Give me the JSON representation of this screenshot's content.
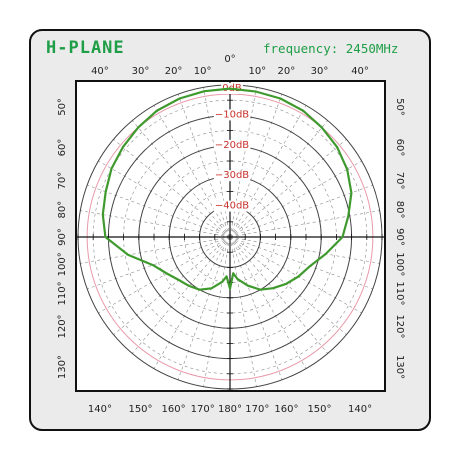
{
  "title": "H-PLANE",
  "frequency_label": "frequency: 2450MHz",
  "colors": {
    "accent": "#1e9e46",
    "pattern_line": "#3f9a2e",
    "radial_label": "#c8322d",
    "reference_circle": "#e99aaa",
    "grid": "#8a8a8a",
    "card_bg": "#ebebeb"
  },
  "chart_data": {
    "type": "polar",
    "title": "H-PLANE",
    "subtitle": "frequency: 2450MHz",
    "r_ticks": [
      0,
      -10,
      -20,
      -30,
      -40
    ],
    "r_tick_labels": [
      "0dB",
      "−10dB",
      "−20dB",
      "−30dB",
      "−40dB"
    ],
    "r_range": [
      -50,
      0
    ],
    "reference_ring_db": -3,
    "angle_tick_labels": {
      "top": [
        "40°",
        "30°",
        "20°",
        "10°",
        "0°",
        "10°",
        "20°",
        "30°",
        "40°"
      ],
      "bottom": [
        "140°",
        "150°",
        "160°",
        "170°",
        "180°",
        "170°",
        "160°",
        "150°",
        "140°"
      ],
      "left": [
        "50°",
        "60°",
        "70°",
        "80°",
        "90°",
        "100°",
        "110°",
        "120°",
        "130°"
      ],
      "right": [
        "50°",
        "60°",
        "70°",
        "80°",
        "90°",
        "100°",
        "110°",
        "120°",
        "130°"
      ]
    },
    "grid": true,
    "series": [
      {
        "angles_deg": [
          0,
          10,
          20,
          30,
          40,
          50,
          60,
          70,
          80,
          90,
          100,
          110,
          120,
          130,
          140,
          150,
          160,
          170,
          175,
          180,
          185,
          190,
          200,
          210,
          220,
          230,
          240,
          250,
          260,
          270,
          280,
          290,
          300,
          310,
          320,
          330,
          340,
          350
        ],
        "values_db": [
          -1.2,
          -1.4,
          -1.5,
          -2.0,
          -3.0,
          -4.0,
          -5.5,
          -7.5,
          -10.5,
          -13.0,
          -18.0,
          -22.0,
          -24.0,
          -26.0,
          -28.0,
          -30.0,
          -33.0,
          -36.0,
          -38.0,
          -33.0,
          -37.0,
          -35.0,
          -32.0,
          -30.0,
          -29.0,
          -28.0,
          -26.0,
          -23.0,
          -16.0,
          -9.0,
          -7.5,
          -6.5,
          -5.0,
          -4.0,
          -3.0,
          -2.0,
          -1.5,
          -1.3
        ]
      }
    ]
  }
}
